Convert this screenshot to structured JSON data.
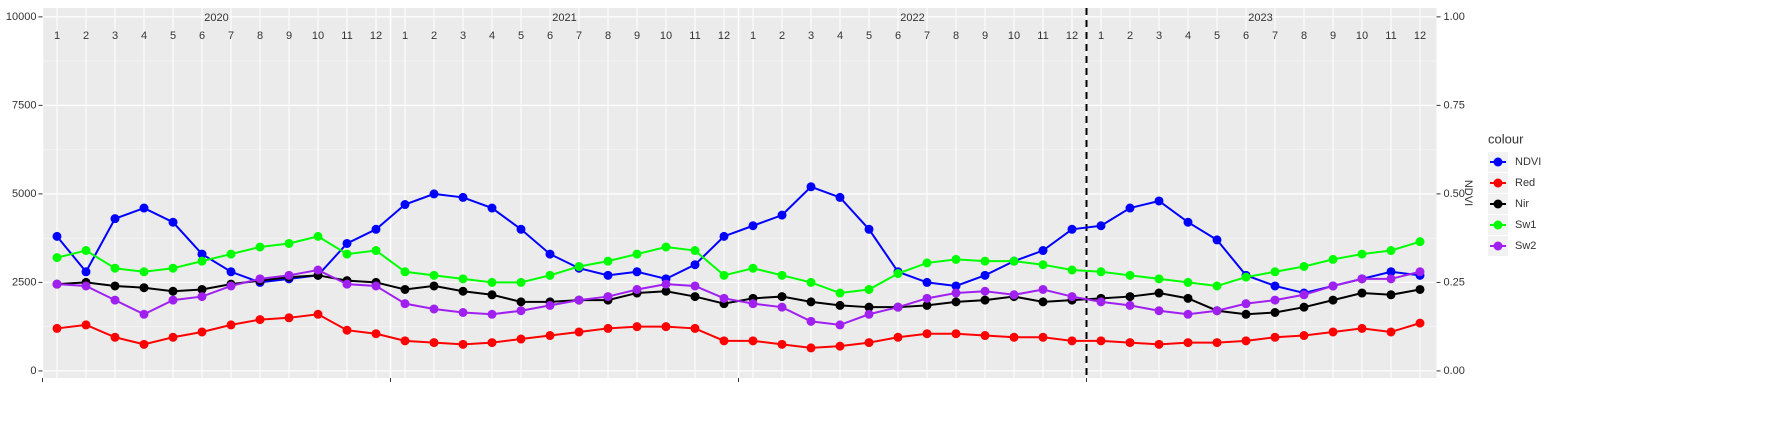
{
  "chart_data": {
    "type": "line",
    "years": [
      "2020",
      "2021",
      "2022",
      "2023"
    ],
    "categories": [
      "1",
      "2",
      "3",
      "4",
      "5",
      "6",
      "7",
      "8",
      "9",
      "10",
      "11",
      "12",
      "1",
      "2",
      "3",
      "4",
      "5",
      "6",
      "7",
      "8",
      "9",
      "10",
      "11",
      "12",
      "1",
      "2",
      "3",
      "4",
      "5",
      "6",
      "7",
      "8",
      "9",
      "10",
      "11",
      "12",
      "1",
      "2",
      "3",
      "4",
      "5",
      "6",
      "7",
      "8",
      "9",
      "10",
      "11",
      "12"
    ],
    "ylim": [
      -200,
      10250
    ],
    "yticks": [
      0,
      2500,
      5000,
      7500,
      10000
    ],
    "y2lim": [
      -0.02,
      1.025
    ],
    "y2ticks": [
      {
        "value": 0,
        "label": "0.00"
      },
      {
        "value": 0.25,
        "label": "0.25"
      },
      {
        "value": 0.5,
        "label": "0.50"
      },
      {
        "value": 0.75,
        "label": "0.75"
      },
      {
        "value": 1,
        "label": "1.00"
      }
    ],
    "y2label": "NDVI",
    "legend_title": "colour",
    "legend": "right",
    "grid": true,
    "series": [
      {
        "name": "NDVI",
        "color": "#0000ff",
        "axis": "y2",
        "values": [
          0.38,
          0.28,
          0.43,
          0.46,
          0.42,
          0.33,
          0.28,
          0.25,
          0.26,
          0.27,
          0.36,
          0.4,
          0.47,
          0.5,
          0.49,
          0.46,
          0.4,
          0.33,
          0.29,
          0.27,
          0.28,
          0.26,
          0.3,
          0.38,
          0.41,
          0.44,
          0.52,
          0.49,
          0.4,
          0.28,
          0.25,
          0.24,
          0.27,
          0.31,
          0.34,
          0.4,
          0.41,
          0.46,
          0.48,
          0.42,
          0.37,
          0.27,
          0.24,
          0.22,
          0.24,
          0.26,
          0.28,
          0.27
        ]
      },
      {
        "name": "Red",
        "color": "#ff0000",
        "values": [
          1200,
          1300,
          950,
          750,
          950,
          1100,
          1300,
          1450,
          1500,
          1600,
          1150,
          1050,
          850,
          800,
          750,
          800,
          900,
          1000,
          1100,
          1200,
          1250,
          1250,
          1200,
          850,
          850,
          750,
          650,
          700,
          800,
          950,
          1050,
          1050,
          1000,
          950,
          950,
          850,
          850,
          800,
          750,
          800,
          800,
          850,
          950,
          1000,
          1100,
          1200,
          1100,
          1350
        ]
      },
      {
        "name": "Nir",
        "color": "#000000",
        "values": [
          2450,
          2500,
          2400,
          2350,
          2250,
          2300,
          2450,
          2550,
          2650,
          2700,
          2550,
          2500,
          2300,
          2400,
          2250,
          2150,
          1950,
          1950,
          2000,
          2000,
          2200,
          2250,
          2100,
          1900,
          2050,
          2100,
          1950,
          1850,
          1800,
          1800,
          1850,
          1950,
          2000,
          2100,
          1950,
          2000,
          2050,
          2100,
          2200,
          2050,
          1700,
          1600,
          1650,
          1800,
          2000,
          2200,
          2150,
          2300
        ]
      },
      {
        "name": "Sw1",
        "color": "#00ff00",
        "values": [
          3200,
          3400,
          2900,
          2800,
          2900,
          3100,
          3300,
          3500,
          3600,
          3800,
          3300,
          3400,
          2800,
          2700,
          2600,
          2500,
          2500,
          2700,
          2950,
          3100,
          3300,
          3500,
          3400,
          2700,
          2900,
          2700,
          2500,
          2200,
          2300,
          2750,
          3050,
          3150,
          3100,
          3100,
          3000,
          2850,
          2800,
          2700,
          2600,
          2500,
          2400,
          2650,
          2800,
          2950,
          3150,
          3300,
          3400,
          3650
        ]
      },
      {
        "name": "Sw2",
        "color": "#a020f0",
        "values": [
          2450,
          2400,
          2000,
          1600,
          2000,
          2100,
          2400,
          2600,
          2700,
          2850,
          2450,
          2400,
          1900,
          1750,
          1650,
          1600,
          1700,
          1850,
          2000,
          2100,
          2300,
          2450,
          2400,
          2050,
          1900,
          1800,
          1400,
          1300,
          1600,
          1800,
          2050,
          2200,
          2250,
          2150,
          2300,
          2100,
          1950,
          1850,
          1700,
          1600,
          1700,
          1900,
          2000,
          2150,
          2400,
          2600,
          2600,
          2800
        ]
      }
    ]
  }
}
